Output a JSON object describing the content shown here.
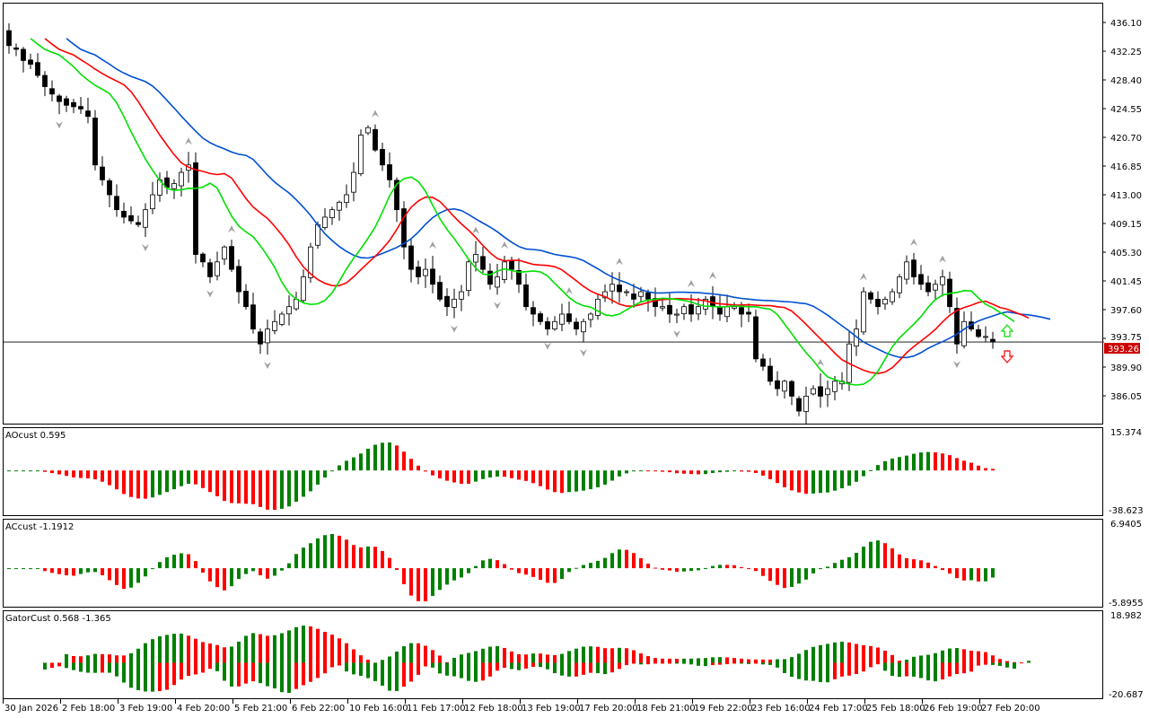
{
  "colors": {
    "bull": "#008000",
    "bear": "#ff0000",
    "jaw": "#0050d0",
    "teeth": "#ff0000",
    "lips": "#00e000",
    "price_label": "#cc0000",
    "fractal": "#a0a0a0"
  },
  "chart_data": [
    {
      "type": "candlestick",
      "name": "main",
      "ylim": [
        382.32,
        438.75
      ],
      "y_ticks": [
        "436.10",
        "432.25",
        "428.40",
        "424.55",
        "420.70",
        "416.85",
        "413.00",
        "409.15",
        "405.30",
        "401.45",
        "397.60",
        "393.75",
        "389.90",
        "386.05"
      ],
      "y_tick_values": [
        436.1,
        432.25,
        428.4,
        424.55,
        420.7,
        416.85,
        413.0,
        409.15,
        405.3,
        401.45,
        397.6,
        393.75,
        389.9,
        386.05
      ],
      "current_price": 393.26,
      "current_price_label": "393.26",
      "closes": [
        433,
        432.5,
        431,
        430.5,
        429,
        427.5,
        426.5,
        425.5,
        425,
        424.8,
        424.5,
        423.5,
        417,
        415,
        413,
        411,
        410,
        409.5,
        409,
        411,
        413,
        415,
        414,
        414.5,
        416,
        417,
        405,
        404,
        402,
        404,
        406,
        403,
        400,
        398,
        395,
        393,
        395,
        396,
        397,
        398,
        399,
        402,
        406,
        409,
        410,
        411,
        412,
        413,
        416,
        421,
        422,
        419,
        417,
        415,
        411,
        406,
        403,
        402,
        403,
        401,
        399,
        398,
        399,
        400,
        404,
        405,
        403,
        401,
        402,
        404,
        403,
        401,
        398,
        397,
        396,
        395,
        396,
        397,
        396,
        395,
        396,
        397,
        399,
        400,
        401,
        400,
        400,
        399,
        400,
        399,
        398,
        398,
        397,
        397,
        398,
        397,
        398,
        399,
        398,
        397,
        398,
        398,
        397,
        397,
        391,
        390,
        388,
        387,
        388,
        386,
        384,
        386,
        387,
        386,
        387,
        388,
        388,
        393,
        395,
        400,
        399,
        398,
        399,
        400,
        402,
        404,
        402,
        401,
        400,
        401,
        402,
        398,
        393,
        396,
        395,
        394,
        394,
        393.26
      ],
      "first_open": 435,
      "x_labels": [
        "30 Jan 2026",
        "2 Feb 18:00",
        "3 Feb 19:00",
        "4 Feb 20:00",
        "5 Feb 21:00",
        "6 Feb 22:00",
        "10 Feb 16:00",
        "11 Feb 17:00",
        "12 Feb 18:00",
        "13 Feb 19:00",
        "17 Feb 20:00",
        "18 Feb 21:00",
        "19 Feb 22:00",
        "23 Feb 16:00",
        "24 Feb 17:00",
        "25 Feb 18:00",
        "26 Feb 19:00",
        "27 Feb 20:00"
      ]
    },
    {
      "type": "histogram",
      "name": "AOcust",
      "label": "AOcust 0.595",
      "y_max_label": "15.374",
      "y_min_label": "-38.623"
    },
    {
      "type": "histogram",
      "name": "ACcust",
      "label": "ACcust -1.1912",
      "y_max_label": "6.9405",
      "y_min_label": "-5.8955"
    },
    {
      "type": "histogram",
      "name": "GatorCust",
      "label": "GatorCust 0.568 -1.365",
      "y_max_label": "18.982",
      "y_min_label": "-20.687"
    }
  ]
}
